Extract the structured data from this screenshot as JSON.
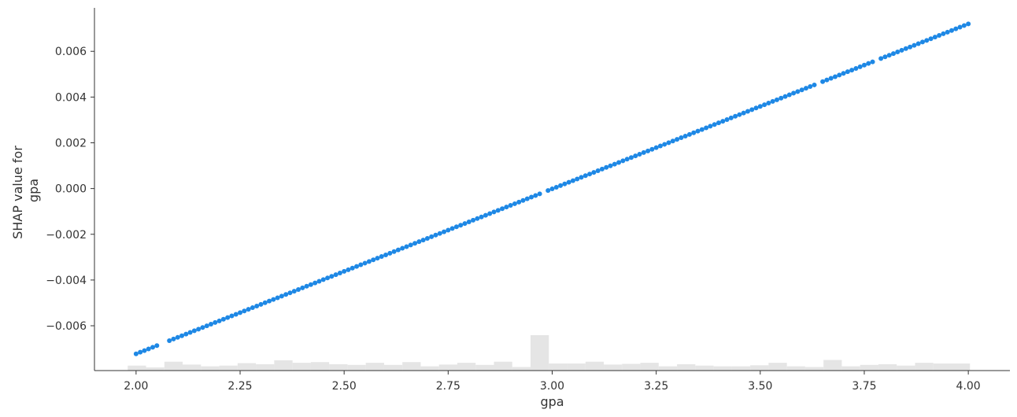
{
  "chart_data": {
    "type": "scatter",
    "title": "",
    "xlabel": "gpa",
    "ylabel_lines": [
      "SHAP value for",
      "gpa"
    ],
    "xlim": [
      1.9,
      4.1
    ],
    "ylim": [
      -0.00796,
      0.0079
    ],
    "x_ticks": [
      2.0,
      2.25,
      2.5,
      2.75,
      3.0,
      3.25,
      3.5,
      3.75,
      4.0
    ],
    "x_tick_labels": [
      "2.00",
      "2.25",
      "2.50",
      "2.75",
      "3.00",
      "3.25",
      "3.50",
      "3.75",
      "4.00"
    ],
    "y_ticks": [
      -0.006,
      -0.004,
      -0.002,
      0.0,
      0.002,
      0.004,
      0.006
    ],
    "y_tick_labels": [
      "−0.006",
      "−0.004",
      "−0.002",
      "0.000",
      "0.002",
      "0.004",
      "0.006"
    ],
    "grid": false,
    "point_color": "#1e88e5",
    "series": [
      {
        "x_start": 2.0,
        "x_end": 4.0,
        "x_step": 0.01,
        "y_at_x_start": -0.00723,
        "y_at_x_end": 0.0072,
        "missing_x": [
          2.06,
          2.07,
          2.98,
          3.64,
          3.78
        ]
      }
    ],
    "histogram": {
      "color": "#e5e5e5",
      "bin_width": 0.044,
      "bin_start": 1.98,
      "relative_heights": [
        0.14,
        0.09,
        0.25,
        0.17,
        0.12,
        0.14,
        0.21,
        0.18,
        0.29,
        0.22,
        0.24,
        0.18,
        0.16,
        0.22,
        0.16,
        0.24,
        0.12,
        0.17,
        0.22,
        0.16,
        0.25,
        0.1,
        1.0,
        0.2,
        0.2,
        0.25,
        0.17,
        0.19,
        0.22,
        0.12,
        0.18,
        0.14,
        0.12,
        0.12,
        0.15,
        0.22,
        0.12,
        0.1,
        0.3,
        0.12,
        0.16,
        0.18,
        0.14,
        0.22,
        0.2,
        0.2
      ]
    }
  }
}
